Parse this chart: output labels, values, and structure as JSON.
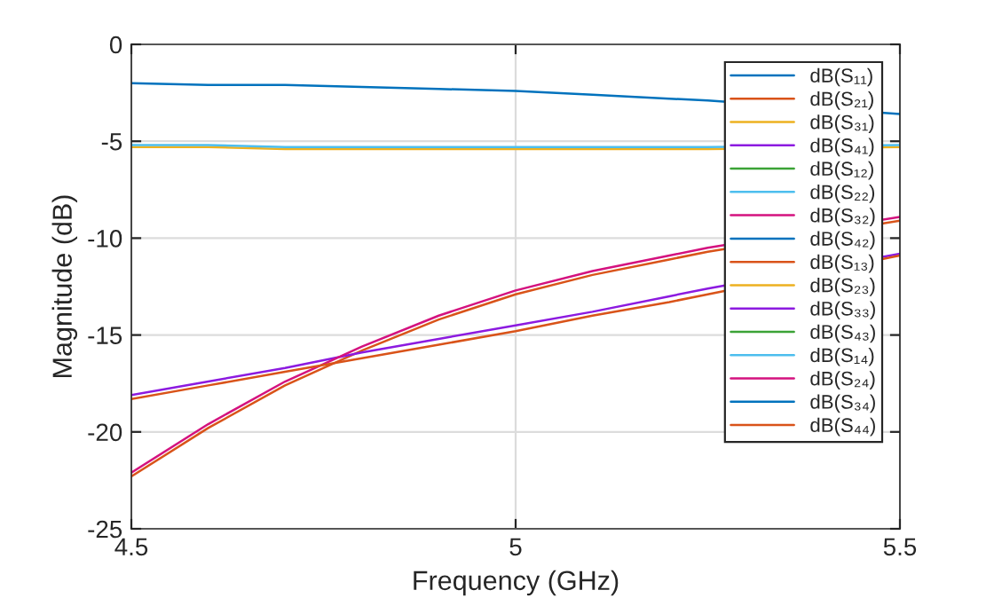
{
  "chart_data": {
    "type": "line",
    "xlabel": "Frequency (GHz)",
    "ylabel": "Magnitude (dB)",
    "x": [
      4.5,
      4.6,
      4.7,
      4.8,
      4.9,
      5.0,
      5.1,
      5.2,
      5.25,
      5.5
    ],
    "xlim": [
      4.5,
      5.5
    ],
    "xticks": [
      4.5,
      5,
      5.5
    ],
    "ylim": [
      -25,
      0
    ],
    "yticks": [
      -25,
      -20,
      -15,
      -10,
      -5,
      0
    ],
    "grid": true,
    "legend": "top right",
    "marker": "none",
    "line_style": "solid",
    "series": [
      {
        "name": "dB(S₁₁)",
        "color": "#0072bd",
        "values": [
          -2.0,
          -2.1,
          -2.1,
          -2.2,
          -2.3,
          -2.4,
          -2.6,
          -2.8,
          -2.9,
          -3.6
        ]
      },
      {
        "name": "dB(S₂₁)",
        "color": "#d95319",
        "values": [
          -22.3,
          -19.8,
          -17.6,
          -15.8,
          -14.2,
          -12.9,
          -11.9,
          -11.1,
          -10.7,
          -9.1
        ]
      },
      {
        "name": "dB(S₃₁)",
        "color": "#edb120",
        "values": [
          -5.3,
          -5.3,
          -5.4,
          -5.4,
          -5.4,
          -5.4,
          -5.4,
          -5.4,
          -5.4,
          -5.3
        ]
      },
      {
        "name": "dB(S₄₁)",
        "color": "#8c1ae0",
        "values": [
          -18.1,
          -17.4,
          -16.7,
          -15.9,
          -15.2,
          -14.5,
          -13.8,
          -13.0,
          -12.6,
          -10.8
        ]
      },
      {
        "name": "dB(S₁₂)",
        "color": "#3ba336",
        "values": [
          null,
          null,
          null,
          null,
          null,
          null,
          null,
          null,
          null,
          null
        ]
      },
      {
        "name": "dB(S₂₂)",
        "color": "#4dbeee",
        "values": [
          -5.2,
          -5.2,
          -5.3,
          -5.3,
          -5.3,
          -5.3,
          -5.3,
          -5.3,
          -5.3,
          -5.2
        ]
      },
      {
        "name": "dB(S₃₂)",
        "color": "#d4127f",
        "values": [
          -22.1,
          -19.6,
          -17.4,
          -15.6,
          -14.0,
          -12.7,
          -11.7,
          -10.9,
          -10.5,
          -8.9
        ]
      },
      {
        "name": "dB(S₄₂)",
        "color": "#0072bd",
        "values": [
          null,
          null,
          null,
          null,
          null,
          null,
          null,
          null,
          null,
          null
        ]
      },
      {
        "name": "dB(S₁₃)",
        "color": "#d95319",
        "values": [
          -18.3,
          -17.6,
          -16.9,
          -16.2,
          -15.5,
          -14.8,
          -14.0,
          -13.3,
          -12.9,
          -10.9
        ]
      },
      {
        "name": "dB(S₂₃)",
        "color": "#edb120",
        "values": [
          null,
          null,
          null,
          null,
          null,
          null,
          null,
          null,
          null,
          null
        ]
      },
      {
        "name": "dB(S₃₃)",
        "color": "#8c1ae0",
        "values": [
          null,
          null,
          null,
          null,
          null,
          null,
          null,
          null,
          null,
          null
        ]
      },
      {
        "name": "dB(S₄₃)",
        "color": "#3ba336",
        "values": [
          null,
          null,
          null,
          null,
          null,
          null,
          null,
          null,
          null,
          null
        ]
      },
      {
        "name": "dB(S₁₄)",
        "color": "#4dbeee",
        "values": [
          null,
          null,
          null,
          null,
          null,
          null,
          null,
          null,
          null,
          null
        ]
      },
      {
        "name": "dB(S₂₄)",
        "color": "#d4127f",
        "values": [
          null,
          null,
          null,
          null,
          null,
          null,
          null,
          null,
          null,
          null
        ]
      },
      {
        "name": "dB(S₃₄)",
        "color": "#0072bd",
        "values": [
          null,
          null,
          null,
          null,
          null,
          null,
          null,
          null,
          null,
          null
        ]
      },
      {
        "name": "dB(S₄₄)",
        "color": "#d95319",
        "values": [
          null,
          null,
          null,
          null,
          null,
          null,
          null,
          null,
          null,
          null
        ]
      }
    ]
  }
}
